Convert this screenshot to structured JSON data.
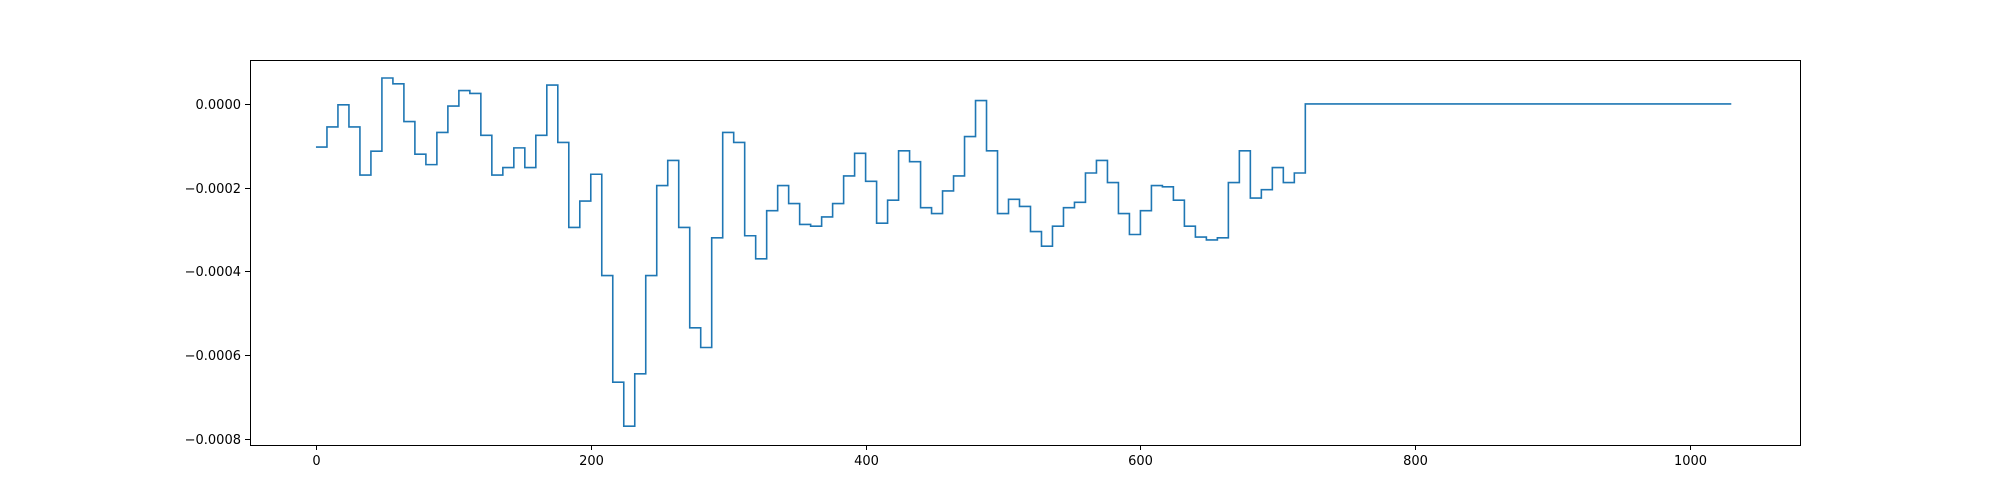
{
  "chart_data": {
    "type": "line",
    "title": "",
    "xlabel": "",
    "ylabel": "",
    "xlim": [
      -48,
      1080
    ],
    "ylim": [
      -0.000815,
      0.000105
    ],
    "grid": false,
    "x_ticks": [
      {
        "value": 0,
        "label": "0"
      },
      {
        "value": 200,
        "label": "200"
      },
      {
        "value": 400,
        "label": "400"
      },
      {
        "value": 600,
        "label": "600"
      },
      {
        "value": 800,
        "label": "800"
      },
      {
        "value": 1000,
        "label": "1000"
      }
    ],
    "y_ticks": [
      {
        "value": 0.0,
        "label": "0.0000"
      },
      {
        "value": -0.0002,
        "label": "−0.0002"
      },
      {
        "value": -0.0004,
        "label": "−0.0004"
      },
      {
        "value": -0.0006,
        "label": "−0.0006"
      },
      {
        "value": -0.0008,
        "label": "−0.0008"
      }
    ],
    "series": [
      {
        "color": "#1f77b4",
        "step": 8,
        "x_start": 0,
        "x_end": 1030,
        "values": [
          -0.000103,
          -5.5e-05,
          -2e-06,
          -5.5e-05,
          -0.00017,
          -0.000113,
          6.2e-05,
          4.8e-05,
          -4.2e-05,
          -0.00012,
          -0.000145,
          -6.8e-05,
          -5e-06,
          3.2e-05,
          2.5e-05,
          -7.5e-05,
          -0.00017,
          -0.000152,
          -0.000105,
          -0.000152,
          -7.5e-05,
          4.5e-05,
          -9.2e-05,
          -0.000295,
          -0.000232,
          -0.000168,
          -0.00041,
          -0.000665,
          -0.00077,
          -0.000645,
          -0.00041,
          -0.000195,
          -0.000135,
          -0.000295,
          -0.000535,
          -0.000582,
          -0.00032,
          -6.8e-05,
          -9.2e-05,
          -0.000315,
          -0.00037,
          -0.000255,
          -0.000195,
          -0.000238,
          -0.000288,
          -0.000292,
          -0.00027,
          -0.000238,
          -0.000172,
          -0.000118,
          -0.000185,
          -0.000285,
          -0.00023,
          -0.000112,
          -0.000138,
          -0.000248,
          -0.000262,
          -0.000208,
          -0.000172,
          -7.8e-05,
          8e-06,
          -0.000112,
          -0.000262,
          -0.000228,
          -0.000245,
          -0.000305,
          -0.00034,
          -0.000292,
          -0.000248,
          -0.000235,
          -0.000165,
          -0.000135,
          -0.000188,
          -0.000262,
          -0.000312,
          -0.000255,
          -0.000195,
          -0.000198,
          -0.00023,
          -0.000292,
          -0.000318,
          -0.000325,
          -0.00032,
          -0.000188,
          -0.000112,
          -0.000225,
          -0.000205,
          -0.000152,
          -0.000188,
          -0.000165,
          0.0,
          0.0
        ]
      }
    ]
  }
}
